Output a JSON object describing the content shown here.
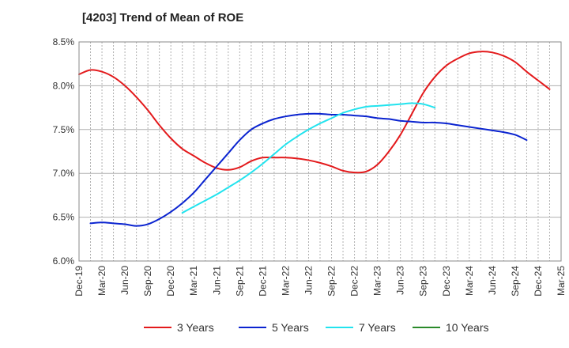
{
  "chart_data": {
    "type": "line",
    "title": "[4203]  Trend of Mean of ROE",
    "xlabel": "",
    "ylabel": "",
    "ylim": [
      6.0,
      8.5
    ],
    "yticks": [
      6.0,
      6.5,
      7.0,
      7.5,
      8.0,
      8.5
    ],
    "ytick_labels": [
      "6.0%",
      "6.5%",
      "7.0%",
      "7.5%",
      "8.0%",
      "8.5%"
    ],
    "x_categories": [
      "Dec-19",
      "Mar-20",
      "Jun-20",
      "Sep-20",
      "Dec-20",
      "Mar-21",
      "Jun-21",
      "Sep-21",
      "Dec-21",
      "Mar-22",
      "Jun-22",
      "Sep-22",
      "Dec-22",
      "Mar-23",
      "Jun-23",
      "Sep-23",
      "Dec-23",
      "Mar-24",
      "Jun-24",
      "Sep-24",
      "Dec-24",
      "Mar-25"
    ],
    "grid": {
      "horizontal": "solid",
      "vertical": "dotted"
    },
    "legend_position": "bottom",
    "series": [
      {
        "name": "3 Years",
        "color": "#e31a1c",
        "start_index": 0,
        "values": [
          8.13,
          8.18,
          8.16,
          8.1,
          8.0,
          7.87,
          7.72,
          7.55,
          7.4,
          7.28,
          7.2,
          7.12,
          7.06,
          7.04,
          7.07,
          7.14,
          7.18,
          7.18,
          7.18,
          7.17,
          7.15,
          7.12,
          7.08,
          7.03,
          7.01,
          7.02,
          7.1,
          7.25,
          7.44,
          7.68,
          7.92,
          8.1,
          8.23,
          8.31,
          8.37,
          8.39,
          8.38,
          8.34,
          8.27,
          8.16,
          8.06,
          7.96
        ]
      },
      {
        "name": "5 Years",
        "color": "#0b24d0",
        "start_index": 1,
        "values": [
          6.43,
          6.44,
          6.43,
          6.42,
          6.4,
          6.42,
          6.48,
          6.56,
          6.66,
          6.78,
          6.93,
          7.08,
          7.23,
          7.38,
          7.5,
          7.57,
          7.62,
          7.65,
          7.67,
          7.68,
          7.68,
          7.67,
          7.67,
          7.66,
          7.65,
          7.63,
          7.62,
          7.6,
          7.59,
          7.58,
          7.58,
          7.57,
          7.55,
          7.53,
          7.51,
          7.49,
          7.47,
          7.44,
          7.38
        ]
      },
      {
        "name": "7 Years",
        "color": "#22e3ee",
        "start_index": 9,
        "values": [
          6.55,
          6.62,
          6.69,
          6.76,
          6.84,
          6.92,
          7.01,
          7.11,
          7.22,
          7.33,
          7.42,
          7.5,
          7.57,
          7.63,
          7.69,
          7.73,
          7.76,
          7.77,
          7.78,
          7.79,
          7.8,
          7.79,
          7.75
        ]
      },
      {
        "name": "10 Years",
        "color": "#2a8a2a",
        "start_index": 0,
        "values": []
      }
    ]
  }
}
